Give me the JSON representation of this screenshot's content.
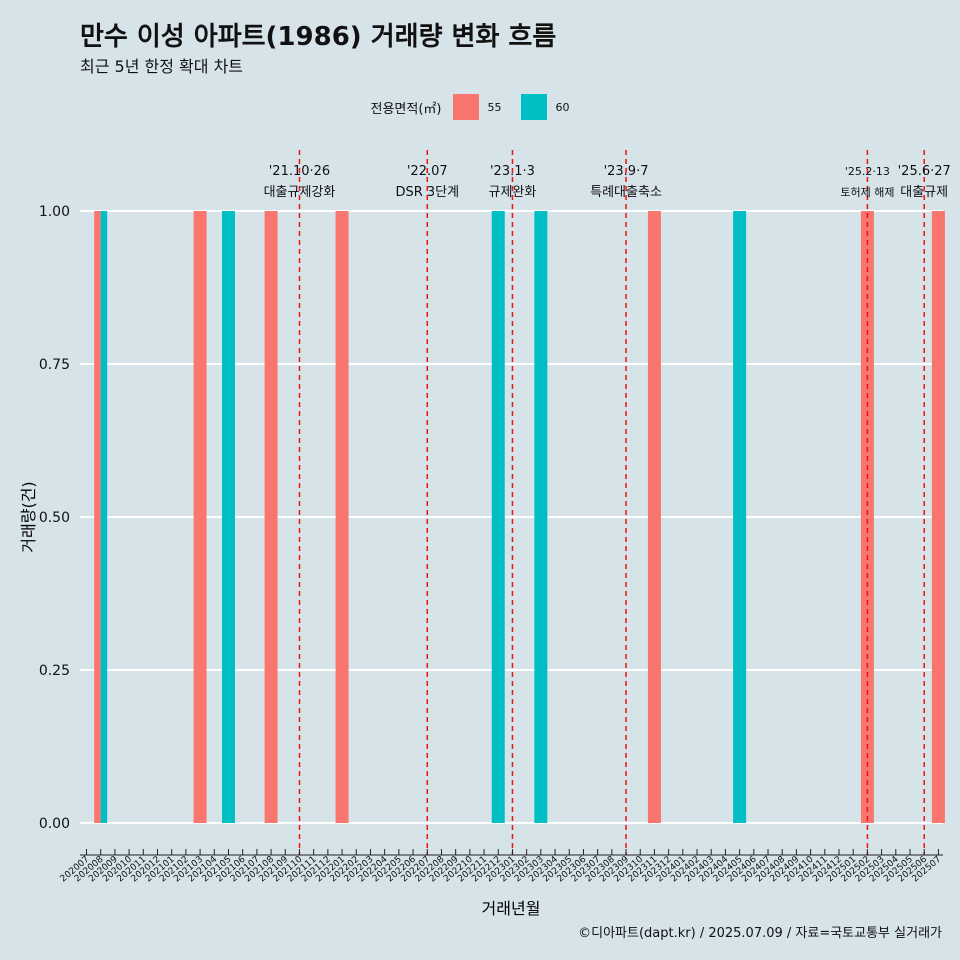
{
  "title": "만수 이성 아파트(1986) 거래량 변화 흐름",
  "subtitle": "최근 5년 한정 확대 차트",
  "caption": "©디아파트(dapt.kr) / 2025.07.09 / 자료=국토교통부 실거래가",
  "legend": {
    "title": "전용면적(㎡)",
    "items": [
      {
        "label": "55",
        "color": "#f8766d"
      },
      {
        "label": "60",
        "color": "#00bfc4"
      }
    ]
  },
  "chart_data": {
    "type": "bar",
    "xlabel": "거래년월",
    "ylabel": "거래량(건)",
    "ylim": [
      0,
      1
    ],
    "yticks": [
      "0.00",
      "0.25",
      "0.50",
      "0.75",
      "1.00"
    ],
    "categories": [
      "202007",
      "202008",
      "202009",
      "202010",
      "202011",
      "202012",
      "202101",
      "202102",
      "202103",
      "202104",
      "202105",
      "202106",
      "202107",
      "202108",
      "202109",
      "202110",
      "202111",
      "202112",
      "202201",
      "202202",
      "202203",
      "202204",
      "202205",
      "202206",
      "202207",
      "202208",
      "202209",
      "202210",
      "202211",
      "202212",
      "202301",
      "202302",
      "202303",
      "202304",
      "202305",
      "202306",
      "202307",
      "202308",
      "202309",
      "202310",
      "202311",
      "202312",
      "202401",
      "202402",
      "202403",
      "202404",
      "202405",
      "202406",
      "202407",
      "202408",
      "202409",
      "202410",
      "202411",
      "202412",
      "202501",
      "202502",
      "202503",
      "202504",
      "202505",
      "202506",
      "202507"
    ],
    "series": [
      {
        "name": "55",
        "color": "#f8766d",
        "points": [
          {
            "x": "202008",
            "y": 1,
            "offset": -0.25
          },
          {
            "x": "202103",
            "y": 1,
            "offset": 0
          },
          {
            "x": "202108",
            "y": 1,
            "offset": 0
          },
          {
            "x": "202201",
            "y": 1,
            "offset": 0
          },
          {
            "x": "202311",
            "y": 1,
            "offset": 0
          },
          {
            "x": "202502",
            "y": 1,
            "offset": 0
          },
          {
            "x": "202507",
            "y": 1,
            "offset": 0
          }
        ]
      },
      {
        "name": "60",
        "color": "#00bfc4",
        "points": [
          {
            "x": "202008",
            "y": 1,
            "offset": 0.25
          },
          {
            "x": "202105",
            "y": 1,
            "offset": 0
          },
          {
            "x": "202212",
            "y": 1,
            "offset": 0
          },
          {
            "x": "202303",
            "y": 1,
            "offset": 0
          },
          {
            "x": "202405",
            "y": 1,
            "offset": 0
          }
        ]
      }
    ],
    "events": [
      {
        "x": "202110",
        "line1": "'21.10·26",
        "line2": "대출규제강화",
        "small": false
      },
      {
        "x": "202207",
        "line1": "'22.07",
        "line2": "DSR 3단계",
        "small": false
      },
      {
        "x": "202301",
        "line1": "'23.1·3",
        "line2": "규제완화",
        "small": false
      },
      {
        "x": "202309",
        "line1": "'23.9·7",
        "line2": "특례대출축소",
        "small": false
      },
      {
        "x": "202502",
        "line1": "'25.2·13",
        "line2": "토허제 해제",
        "small": true
      },
      {
        "x": "202506",
        "line1": "'25.6·27",
        "line2": "대출규제",
        "small": false
      }
    ]
  }
}
